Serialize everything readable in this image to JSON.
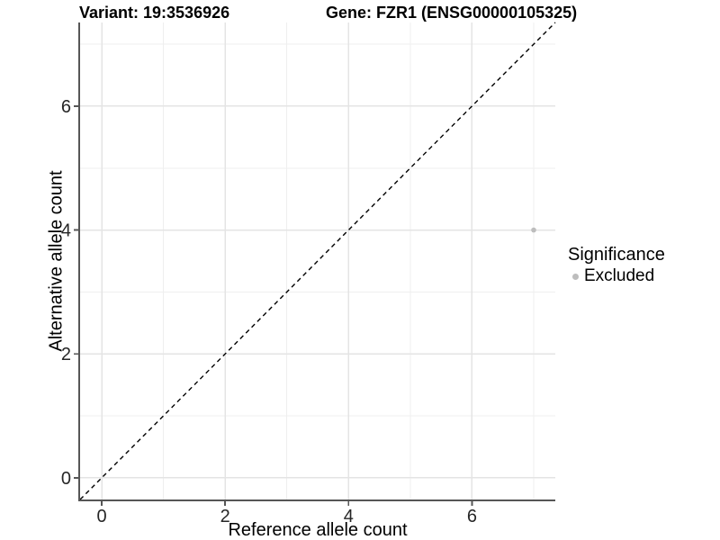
{
  "chart_data": {
    "type": "scatter",
    "title_left": "Variant: 19:3536926",
    "title_right": "Gene: FZR1 (ENSG00000105325)",
    "xlabel": "Reference allele count",
    "ylabel": "Alternative allele count",
    "xlim": [
      -0.35,
      7.35
    ],
    "ylim": [
      -0.35,
      7.35
    ],
    "x_ticks": [
      0,
      2,
      4,
      6
    ],
    "y_ticks": [
      0,
      2,
      4,
      6
    ],
    "x_minor_ticks": [
      1,
      3,
      5,
      7
    ],
    "y_minor_ticks": [
      1,
      3,
      5,
      7
    ],
    "grid": "on",
    "points": [
      {
        "x": 7,
        "y": 4,
        "series": "Excluded"
      }
    ],
    "series": [
      {
        "name": "Excluded",
        "color": "#bdbdbd"
      }
    ],
    "reference_line": {
      "kind": "y = x",
      "style": "dashed",
      "color": "#000000"
    },
    "legend": {
      "title": "Significance",
      "position": "right",
      "items": [
        {
          "label": "Excluded",
          "color": "#bdbdbd"
        }
      ]
    }
  },
  "colors": {
    "background": "#ffffff",
    "grid_major": "#e4e4e4",
    "grid_minor": "#efefef",
    "axis_line": "#565656",
    "tick_label": "#262626",
    "point_default": "#bdbdbd"
  }
}
